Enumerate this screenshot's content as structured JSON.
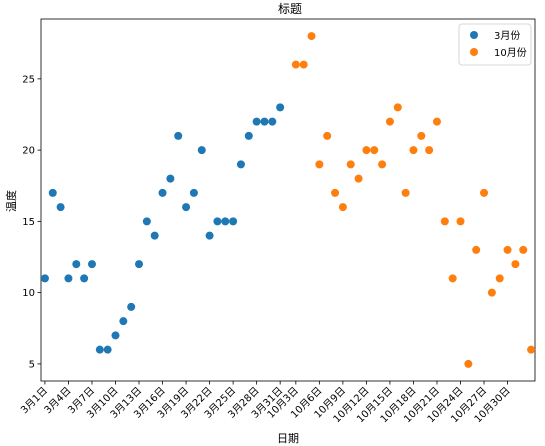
{
  "chart_data": {
    "type": "scatter",
    "title": "标题",
    "xlabel": "日期",
    "ylabel": "温度",
    "ylim": [
      3.8,
      29.2
    ],
    "y_ticks": [
      5,
      10,
      15,
      20,
      25
    ],
    "legend_position": "top-right",
    "x_index_range": [
      0.5,
      63.5
    ],
    "series": [
      {
        "name": "3月份",
        "color": "#1f77b4",
        "x_index": [
          1,
          2,
          3,
          4,
          5,
          6,
          7,
          8,
          9,
          10,
          11,
          12,
          13,
          14,
          15,
          16,
          17,
          18,
          19,
          20,
          21,
          22,
          23,
          24,
          25,
          26,
          27,
          28,
          29,
          30,
          31
        ],
        "values": [
          11,
          17,
          16,
          11,
          12,
          11,
          12,
          6,
          6,
          7,
          8,
          9,
          12,
          15,
          14,
          17,
          18,
          21,
          16,
          17,
          20,
          14,
          15,
          15,
          15,
          19,
          21,
          22,
          22,
          22,
          23
        ]
      },
      {
        "name": "10月份",
        "color": "#ff7f0e",
        "x_index": [
          33,
          34,
          35,
          36,
          37,
          38,
          39,
          40,
          41,
          42,
          43,
          44,
          45,
          46,
          47,
          48,
          49,
          50,
          51,
          52,
          53,
          54,
          55,
          56,
          57,
          58,
          59,
          60,
          61,
          62,
          63
        ],
        "values": [
          26,
          26,
          28,
          19,
          21,
          17,
          16,
          19,
          18,
          20,
          20,
          19,
          22,
          23,
          17,
          20,
          21,
          20,
          22,
          15,
          11,
          15,
          5,
          13,
          17,
          10,
          11,
          13,
          12,
          13,
          6
        ]
      }
    ],
    "x_tick_labels": [
      {
        "x_index": 1,
        "label": "3月1日"
      },
      {
        "x_index": 4,
        "label": "3月4日"
      },
      {
        "x_index": 7,
        "label": "3月7日"
      },
      {
        "x_index": 10,
        "label": "3月10日"
      },
      {
        "x_index": 13,
        "label": "3月13日"
      },
      {
        "x_index": 16,
        "label": "3月16日"
      },
      {
        "x_index": 19,
        "label": "3月19日"
      },
      {
        "x_index": 22,
        "label": "3月22日"
      },
      {
        "x_index": 25,
        "label": "3月25日"
      },
      {
        "x_index": 28,
        "label": "3月28日"
      },
      {
        "x_index": 31,
        "label": "3月31日"
      },
      {
        "x_index": 33,
        "label": "10月3日"
      },
      {
        "x_index": 36,
        "label": "10月6日"
      },
      {
        "x_index": 39,
        "label": "10月9日"
      },
      {
        "x_index": 42,
        "label": "10月12日"
      },
      {
        "x_index": 45,
        "label": "10月15日"
      },
      {
        "x_index": 48,
        "label": "10月18日"
      },
      {
        "x_index": 51,
        "label": "10月21日"
      },
      {
        "x_index": 54,
        "label": "10月24日"
      },
      {
        "x_index": 57,
        "label": "10月27日"
      },
      {
        "x_index": 60,
        "label": "10月30日"
      }
    ]
  }
}
